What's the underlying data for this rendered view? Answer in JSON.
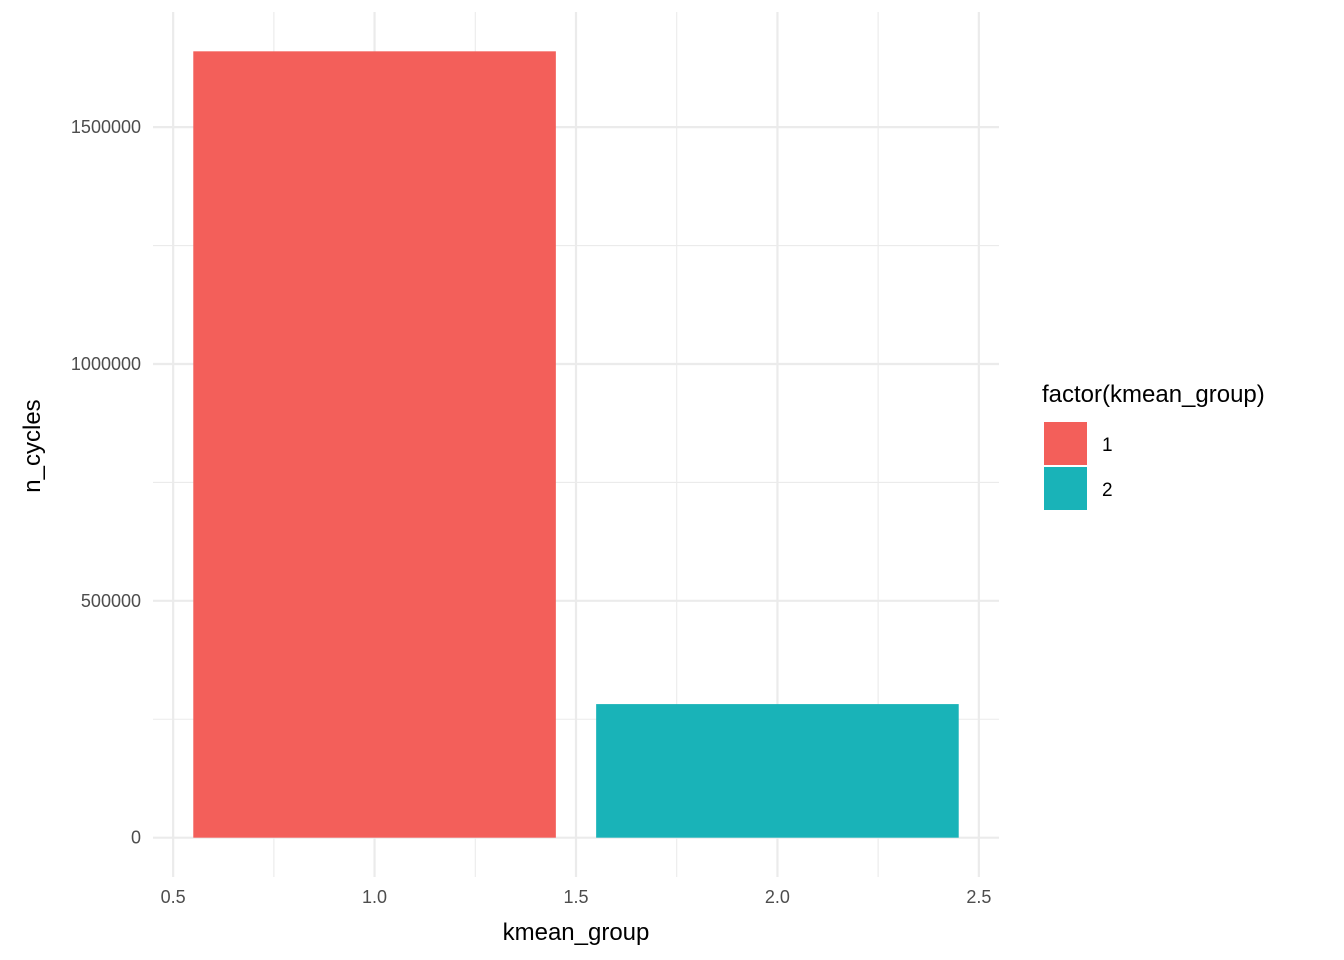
{
  "chart_data": {
    "type": "bar",
    "title": "",
    "xlabel": "kmean_group",
    "ylabel": "n_cycles",
    "x": [
      1,
      2
    ],
    "values": [
      1660000,
      282000
    ],
    "bar_width": 0.9,
    "fills": [
      "#f35f5a",
      "#19b3b8"
    ],
    "xlim": [
      0.45,
      2.55
    ],
    "ylim": [
      -83000,
      1743000
    ],
    "x_major_ticks": [
      0.5,
      1.0,
      1.5,
      2.0,
      2.5
    ],
    "x_tick_labels": [
      "0.5",
      "1.0",
      "1.5",
      "2.0",
      "2.5"
    ],
    "x_minor_ticks": [
      0.75,
      1.25,
      1.75,
      2.25
    ],
    "y_major_ticks": [
      0,
      500000,
      1000000,
      1500000
    ],
    "y_tick_labels": [
      "0",
      "500000",
      "1000000",
      "1500000"
    ],
    "y_minor_ticks": [
      250000,
      750000,
      1250000
    ],
    "grid": true,
    "legend": {
      "title": "factor(kmean_group)",
      "placement": "right",
      "entries": [
        {
          "label": "1",
          "color": "#f35f5a"
        },
        {
          "label": "2",
          "color": "#19b3b8"
        }
      ]
    }
  }
}
